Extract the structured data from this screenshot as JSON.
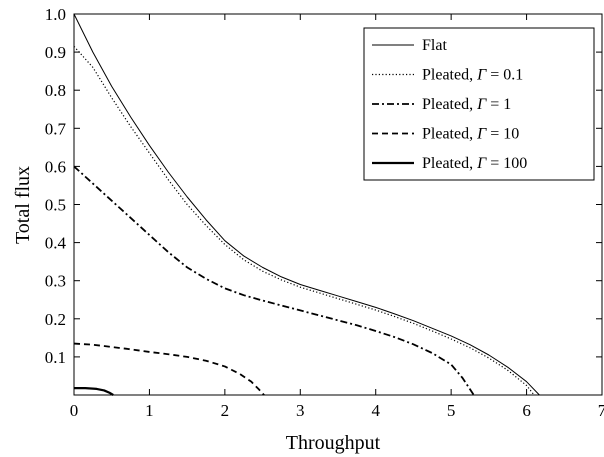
{
  "chart_data": {
    "type": "line",
    "xlabel": "Throughput",
    "ylabel": "Total flux",
    "xlim": [
      0,
      7
    ],
    "ylim": [
      0,
      1
    ],
    "x_ticks": [
      0,
      1,
      2,
      3,
      4,
      5,
      6,
      7
    ],
    "y_ticks": [
      0.1,
      0.2,
      0.3,
      0.4,
      0.5,
      0.6,
      0.7,
      0.8,
      0.9,
      1.0
    ],
    "x_tick_labels": [
      "0",
      "1",
      "2",
      "3",
      "4",
      "5",
      "6",
      "7"
    ],
    "y_tick_labels": [
      "0.1",
      "0.2",
      "0.3",
      "0.4",
      "0.5",
      "0.6",
      "0.7",
      "0.8",
      "0.9",
      "1.0"
    ],
    "grid": false,
    "legend_position": "top-right",
    "series": [
      {
        "name": "Flat",
        "legend_prefix": "Flat",
        "legend_gamma": "",
        "style": "solid-thin",
        "points": [
          [
            0,
            1.0
          ],
          [
            0.1,
            0.96
          ],
          [
            0.25,
            0.9
          ],
          [
            0.5,
            0.81
          ],
          [
            0.75,
            0.73
          ],
          [
            1.0,
            0.655
          ],
          [
            1.25,
            0.585
          ],
          [
            1.5,
            0.52
          ],
          [
            1.75,
            0.46
          ],
          [
            2.0,
            0.405
          ],
          [
            2.25,
            0.365
          ],
          [
            2.5,
            0.335
          ],
          [
            2.75,
            0.31
          ],
          [
            3.0,
            0.29
          ],
          [
            3.25,
            0.275
          ],
          [
            3.5,
            0.26
          ],
          [
            3.75,
            0.245
          ],
          [
            4.0,
            0.23
          ],
          [
            4.25,
            0.213
          ],
          [
            4.5,
            0.195
          ],
          [
            4.75,
            0.175
          ],
          [
            5.0,
            0.155
          ],
          [
            5.25,
            0.132
          ],
          [
            5.5,
            0.105
          ],
          [
            5.75,
            0.073
          ],
          [
            6.0,
            0.035
          ],
          [
            6.17,
            0.0
          ]
        ]
      },
      {
        "name": "Pleated, Γ = 0.1",
        "legend_prefix": "Pleated,",
        "legend_gamma": "Γ",
        "legend_value": "= 0.1",
        "style": "dotted",
        "points": [
          [
            0,
            0.915
          ],
          [
            0.25,
            0.86
          ],
          [
            0.5,
            0.78
          ],
          [
            0.75,
            0.705
          ],
          [
            1.0,
            0.635
          ],
          [
            1.25,
            0.565
          ],
          [
            1.5,
            0.5
          ],
          [
            1.75,
            0.445
          ],
          [
            2.0,
            0.395
          ],
          [
            2.25,
            0.355
          ],
          [
            2.5,
            0.325
          ],
          [
            2.75,
            0.302
          ],
          [
            3.0,
            0.283
          ],
          [
            3.25,
            0.268
          ],
          [
            3.5,
            0.253
          ],
          [
            3.75,
            0.238
          ],
          [
            4.0,
            0.223
          ],
          [
            4.25,
            0.206
          ],
          [
            4.5,
            0.188
          ],
          [
            4.75,
            0.168
          ],
          [
            5.0,
            0.147
          ],
          [
            5.25,
            0.124
          ],
          [
            5.5,
            0.097
          ],
          [
            5.75,
            0.065
          ],
          [
            6.0,
            0.025
          ],
          [
            6.1,
            0.0
          ]
        ]
      },
      {
        "name": "Pleated, Γ = 1",
        "legend_prefix": "Pleated,",
        "legend_gamma": "Γ",
        "legend_value": "= 1",
        "style": "dashdot",
        "points": [
          [
            0,
            0.6
          ],
          [
            0.25,
            0.555
          ],
          [
            0.5,
            0.51
          ],
          [
            0.75,
            0.465
          ],
          [
            1.0,
            0.42
          ],
          [
            1.25,
            0.375
          ],
          [
            1.5,
            0.335
          ],
          [
            1.75,
            0.305
          ],
          [
            2.0,
            0.28
          ],
          [
            2.25,
            0.262
          ],
          [
            2.5,
            0.248
          ],
          [
            2.75,
            0.235
          ],
          [
            3.0,
            0.222
          ],
          [
            3.25,
            0.209
          ],
          [
            3.5,
            0.196
          ],
          [
            3.75,
            0.183
          ],
          [
            4.0,
            0.168
          ],
          [
            4.25,
            0.152
          ],
          [
            4.5,
            0.133
          ],
          [
            4.75,
            0.11
          ],
          [
            5.0,
            0.08
          ],
          [
            5.15,
            0.045
          ],
          [
            5.3,
            0.0
          ]
        ]
      },
      {
        "name": "Pleated, Γ = 10",
        "legend_prefix": "Pleated,",
        "legend_gamma": "Γ",
        "legend_value": "= 10",
        "style": "dashed",
        "points": [
          [
            0,
            0.135
          ],
          [
            0.25,
            0.132
          ],
          [
            0.5,
            0.126
          ],
          [
            0.75,
            0.12
          ],
          [
            1.0,
            0.113
          ],
          [
            1.25,
            0.107
          ],
          [
            1.5,
            0.1
          ],
          [
            1.75,
            0.09
          ],
          [
            2.0,
            0.075
          ],
          [
            2.2,
            0.055
          ],
          [
            2.35,
            0.035
          ],
          [
            2.45,
            0.015
          ],
          [
            2.52,
            0.0
          ]
        ]
      },
      {
        "name": "Pleated, Γ = 100",
        "legend_prefix": "Pleated,",
        "legend_gamma": "Γ",
        "legend_value": "= 100",
        "style": "solid-thick",
        "points": [
          [
            0,
            0.018
          ],
          [
            0.15,
            0.018
          ],
          [
            0.3,
            0.016
          ],
          [
            0.4,
            0.012
          ],
          [
            0.47,
            0.006
          ],
          [
            0.52,
            0.0
          ]
        ]
      }
    ]
  }
}
